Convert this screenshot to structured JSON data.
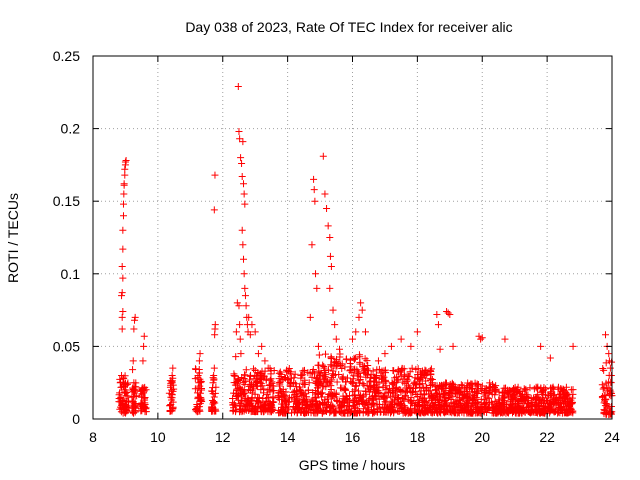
{
  "chart_data": {
    "type": "scatter",
    "title": "Day 038 of 2023, Rate Of TEC Index for receiver alic",
    "xlabel": "GPS time / hours",
    "ylabel": "ROTI / TECUs",
    "xlim": [
      8,
      24
    ],
    "ylim": [
      0,
      0.25
    ],
    "xticks": [
      8,
      10,
      12,
      14,
      16,
      18,
      20,
      22,
      24
    ],
    "yticks": [
      0,
      0.05,
      0.1,
      0.15,
      0.2,
      0.25
    ],
    "xtick_labels": [
      "8",
      "10",
      "12",
      "14",
      "16",
      "18",
      "20",
      "22",
      "24"
    ],
    "ytick_labels": [
      "0",
      "0.05",
      "0.1",
      "0.15",
      "0.2",
      "0.25"
    ],
    "grid": true,
    "marker": "+",
    "color": "#ff0000",
    "series": [
      {
        "values_note": "",
        "points": [
          [
            8.8,
            0.012
          ],
          [
            8.82,
            0.018
          ],
          [
            8.84,
            0.025
          ],
          [
            8.86,
            0.015
          ],
          [
            8.88,
            0.03
          ],
          [
            8.9,
            0.01
          ],
          [
            8.9,
            0.062
          ],
          [
            8.9,
            0.07
          ],
          [
            8.88,
            0.085
          ],
          [
            8.9,
            0.087
          ],
          [
            8.92,
            0.097
          ],
          [
            8.9,
            0.105
          ],
          [
            8.92,
            0.117
          ],
          [
            8.92,
            0.13
          ],
          [
            8.94,
            0.14
          ],
          [
            8.94,
            0.148
          ],
          [
            8.95,
            0.155
          ],
          [
            8.96,
            0.162
          ],
          [
            8.98,
            0.168
          ],
          [
            8.98,
            0.172
          ],
          [
            9.0,
            0.175
          ],
          [
            9.0,
            0.177
          ],
          [
            9.02,
            0.178
          ],
          [
            8.96,
            0.161
          ],
          [
            8.94,
            0.028
          ],
          [
            8.96,
            0.022
          ],
          [
            8.98,
            0.012
          ],
          [
            9.0,
            0.02
          ],
          [
            9.02,
            0.016
          ],
          [
            9.04,
            0.009
          ],
          [
            8.92,
            0.074
          ],
          [
            9.2,
            0.015
          ],
          [
            9.22,
            0.02
          ],
          [
            9.24,
            0.012
          ],
          [
            9.26,
            0.025
          ],
          [
            9.28,
            0.018
          ],
          [
            9.3,
            0.008
          ],
          [
            9.22,
            0.034
          ],
          [
            9.24,
            0.04
          ],
          [
            9.26,
            0.062
          ],
          [
            9.28,
            0.068
          ],
          [
            9.3,
            0.07
          ],
          [
            9.32,
            0.022
          ],
          [
            9.5,
            0.015
          ],
          [
            9.52,
            0.02
          ],
          [
            9.54,
            0.04
          ],
          [
            9.56,
            0.05
          ],
          [
            9.58,
            0.057
          ],
          [
            9.52,
            0.01
          ],
          [
            9.56,
            0.018
          ],
          [
            10.4,
            0.01
          ],
          [
            10.42,
            0.02
          ],
          [
            10.44,
            0.03
          ],
          [
            10.46,
            0.035
          ],
          [
            10.4,
            0.015
          ],
          [
            10.44,
            0.025
          ],
          [
            11.2,
            0.01
          ],
          [
            11.22,
            0.018
          ],
          [
            11.24,
            0.03
          ],
          [
            11.26,
            0.025
          ],
          [
            11.28,
            0.04
          ],
          [
            11.3,
            0.045
          ],
          [
            11.24,
            0.015
          ],
          [
            11.3,
            0.02
          ],
          [
            11.75,
            0.058
          ],
          [
            11.76,
            0.062
          ],
          [
            11.77,
            0.065
          ],
          [
            11.76,
            0.168
          ],
          [
            11.74,
            0.144
          ],
          [
            11.7,
            0.025
          ],
          [
            11.72,
            0.03
          ],
          [
            11.74,
            0.035
          ],
          [
            12.35,
            0.03
          ],
          [
            12.4,
            0.043
          ],
          [
            12.42,
            0.06
          ],
          [
            12.45,
            0.08
          ],
          [
            12.48,
            0.229
          ],
          [
            12.5,
            0.198
          ],
          [
            12.52,
            0.193
          ],
          [
            12.55,
            0.18
          ],
          [
            12.58,
            0.176
          ],
          [
            12.6,
            0.167
          ],
          [
            12.62,
            0.191
          ],
          [
            12.64,
            0.162
          ],
          [
            12.66,
            0.155
          ],
          [
            12.68,
            0.148
          ],
          [
            12.6,
            0.13
          ],
          [
            12.62,
            0.12
          ],
          [
            12.64,
            0.11
          ],
          [
            12.66,
            0.1
          ],
          [
            12.68,
            0.09
          ],
          [
            12.7,
            0.085
          ],
          [
            12.72,
            0.078
          ],
          [
            12.74,
            0.07
          ],
          [
            12.76,
            0.065
          ],
          [
            12.78,
            0.06
          ],
          [
            12.5,
            0.078
          ],
          [
            12.52,
            0.065
          ],
          [
            12.54,
            0.055
          ],
          [
            12.56,
            0.045
          ],
          [
            12.8,
            0.07
          ],
          [
            12.85,
            0.058
          ],
          [
            12.9,
            0.065
          ],
          [
            13.0,
            0.06
          ],
          [
            13.1,
            0.045
          ],
          [
            13.2,
            0.05
          ],
          [
            13.3,
            0.04
          ],
          [
            13.4,
            0.035
          ],
          [
            14.7,
            0.07
          ],
          [
            14.8,
            0.165
          ],
          [
            14.82,
            0.158
          ],
          [
            14.84,
            0.15
          ],
          [
            14.86,
            0.1
          ],
          [
            14.9,
            0.09
          ],
          [
            14.95,
            0.05
          ],
          [
            14.75,
            0.12
          ],
          [
            15.1,
            0.181
          ],
          [
            15.15,
            0.155
          ],
          [
            15.2,
            0.145
          ],
          [
            15.25,
            0.133
          ],
          [
            15.3,
            0.125
          ],
          [
            15.32,
            0.112
          ],
          [
            15.35,
            0.105
          ],
          [
            15.3,
            0.09
          ],
          [
            15.4,
            0.075
          ],
          [
            15.45,
            0.065
          ],
          [
            15.5,
            0.055
          ],
          [
            15.6,
            0.048
          ],
          [
            16.0,
            0.055
          ],
          [
            16.1,
            0.06
          ],
          [
            16.2,
            0.07
          ],
          [
            16.25,
            0.08
          ],
          [
            16.3,
            0.075
          ],
          [
            16.4,
            0.06
          ],
          [
            16.8,
            0.04
          ],
          [
            17.0,
            0.045
          ],
          [
            17.2,
            0.05
          ],
          [
            17.5,
            0.055
          ],
          [
            17.8,
            0.05
          ],
          [
            18.0,
            0.06
          ],
          [
            18.6,
            0.072
          ],
          [
            18.65,
            0.065
          ],
          [
            18.7,
            0.048
          ],
          [
            18.9,
            0.074
          ],
          [
            18.95,
            0.073
          ],
          [
            19.0,
            0.072
          ],
          [
            19.1,
            0.05
          ],
          [
            19.9,
            0.057
          ],
          [
            19.95,
            0.055
          ],
          [
            20.0,
            0.056
          ],
          [
            20.7,
            0.055
          ],
          [
            21.8,
            0.05
          ],
          [
            22.1,
            0.042
          ],
          [
            22.8,
            0.05
          ],
          [
            23.8,
            0.058
          ],
          [
            23.85,
            0.05
          ],
          [
            23.9,
            0.045
          ],
          [
            23.92,
            0.04
          ],
          [
            23.95,
            0.035
          ],
          [
            23.98,
            0.03
          ]
        ]
      }
    ],
    "dense_bands": [
      {
        "x_from": 8.8,
        "x_to": 9.1,
        "y_from": 0.004,
        "y_to": 0.03
      },
      {
        "x_from": 9.2,
        "x_to": 9.35,
        "y_from": 0.004,
        "y_to": 0.025
      },
      {
        "x_from": 9.45,
        "x_to": 9.65,
        "y_from": 0.005,
        "y_to": 0.022
      },
      {
        "x_from": 10.35,
        "x_to": 10.5,
        "y_from": 0.005,
        "y_to": 0.03
      },
      {
        "x_from": 11.15,
        "x_to": 11.35,
        "y_from": 0.005,
        "y_to": 0.035
      },
      {
        "x_from": 11.65,
        "x_to": 11.8,
        "y_from": 0.005,
        "y_to": 0.03
      },
      {
        "x_from": 12.3,
        "x_to": 13.6,
        "y_from": 0.005,
        "y_to": 0.035
      },
      {
        "x_from": 13.7,
        "x_to": 15.0,
        "y_from": 0.004,
        "y_to": 0.035
      },
      {
        "x_from": 14.9,
        "x_to": 16.5,
        "y_from": 0.004,
        "y_to": 0.045
      },
      {
        "x_from": 16.5,
        "x_to": 18.5,
        "y_from": 0.004,
        "y_to": 0.035
      },
      {
        "x_from": 18.5,
        "x_to": 20.5,
        "y_from": 0.004,
        "y_to": 0.025
      },
      {
        "x_from": 20.5,
        "x_to": 22.8,
        "y_from": 0.004,
        "y_to": 0.022
      },
      {
        "x_from": 23.7,
        "x_to": 24.0,
        "y_from": 0.003,
        "y_to": 0.04
      }
    ]
  }
}
